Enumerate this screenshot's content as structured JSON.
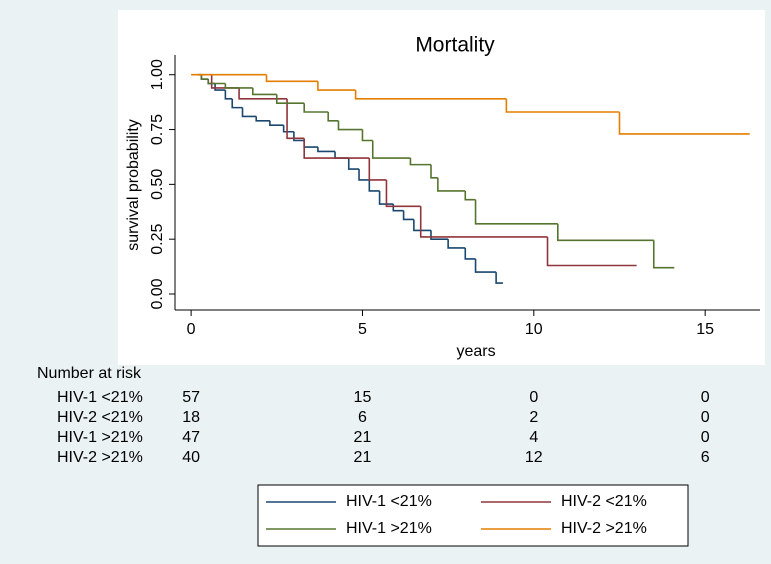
{
  "chart_data": {
    "type": "step",
    "title": "Mortality",
    "xlabel": "years",
    "ylabel": "survival probability",
    "xlim": [
      -0.47,
      16.6
    ],
    "ylim": [
      -0.073,
      1.09
    ],
    "xticks": [
      0,
      5,
      10,
      15
    ],
    "yticks": [
      {
        "value": 0,
        "label": "0.00"
      },
      {
        "value": 0.25,
        "label": "0.25"
      },
      {
        "value": 0.5,
        "label": "0.50"
      },
      {
        "value": 0.75,
        "label": "0.75"
      },
      {
        "value": 1,
        "label": "1.00"
      }
    ],
    "series": [
      {
        "name": "HIV-1 <21%",
        "color": "#1a476f",
        "x": [
          0.2,
          0.3,
          0.5,
          0.7,
          1.0,
          1.2,
          1.5,
          1.9,
          2.3,
          2.7,
          3.0,
          3.3,
          3.7,
          4.2,
          4.6,
          4.9,
          5.2,
          5.5,
          5.9,
          6.2,
          6.5,
          7.0,
          7.5,
          8.0,
          8.3,
          8.9,
          9.1
        ],
        "values": [
          1.0,
          0.98,
          0.96,
          0.93,
          0.89,
          0.85,
          0.81,
          0.79,
          0.77,
          0.74,
          0.7,
          0.67,
          0.65,
          0.62,
          0.57,
          0.52,
          0.47,
          0.41,
          0.38,
          0.34,
          0.29,
          0.25,
          0.21,
          0.16,
          0.1,
          0.05,
          0.05
        ]
      },
      {
        "name": "HIV-2 <21%",
        "color": "#90353b",
        "x": [
          0.2,
          0.6,
          1.4,
          2.8,
          3.3,
          5.2,
          5.7,
          6.7,
          10.4,
          13.0
        ],
        "values": [
          1.0,
          0.94,
          0.89,
          0.71,
          0.62,
          0.52,
          0.4,
          0.26,
          0.13,
          0.13
        ]
      },
      {
        "name": "HIV-1 >21%",
        "color": "#55752f",
        "x": [
          0.2,
          0.3,
          0.5,
          1.0,
          1.8,
          2.5,
          3.3,
          4.0,
          4.3,
          5.0,
          5.3,
          6.4,
          7.0,
          7.2,
          8.0,
          8.3,
          10.7,
          13.5,
          14.1
        ],
        "values": [
          1.0,
          0.98,
          0.96,
          0.94,
          0.91,
          0.87,
          0.83,
          0.79,
          0.75,
          0.7,
          0.62,
          0.59,
          0.53,
          0.47,
          0.43,
          0.32,
          0.245,
          0.12,
          0.12
        ]
      },
      {
        "name": "HIV-2 >21%",
        "color": "#e37e00",
        "x": [
          0,
          2.2,
          3.7,
          4.8,
          9.2,
          12.5,
          16.3
        ],
        "values": [
          1.0,
          0.97,
          0.93,
          0.89,
          0.83,
          0.73,
          0.73
        ]
      }
    ],
    "risk_table": {
      "title": "Number at risk",
      "rows": [
        {
          "label": "HIV-1 <21%",
          "counts": [
            57,
            15,
            0,
            0
          ]
        },
        {
          "label": "HIV-2 <21%",
          "counts": [
            18,
            6,
            2,
            0
          ]
        },
        {
          "label": "HIV-1 >21%",
          "counts": [
            47,
            21,
            4,
            0
          ]
        },
        {
          "label": "HIV-2 >21%",
          "counts": [
            40,
            21,
            12,
            6
          ]
        }
      ]
    }
  }
}
